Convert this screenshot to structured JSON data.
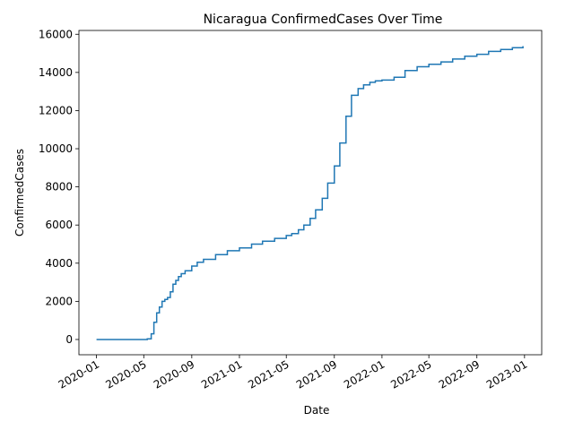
{
  "chart_data": {
    "type": "line",
    "title": "Nicaragua  ConfirmedCases Over Time",
    "xlabel": "Date",
    "ylabel": "ConfirmedCases",
    "x_ticks": [
      "2020-01",
      "2020-05",
      "2020-09",
      "2021-01",
      "2021-05",
      "2021-09",
      "2022-01",
      "2022-05",
      "2022-09",
      "2023-01"
    ],
    "y_ticks": [
      "0",
      "2000",
      "4000",
      "6000",
      "8000",
      "10000",
      "12000",
      "14000",
      "16000"
    ],
    "xlim": [
      "2019-11-17",
      "2023-02-14"
    ],
    "ylim": [
      -800,
      16200
    ],
    "grid": false,
    "line_color": "#1f77b4",
    "series": [
      {
        "x": [
          "2020-01-01",
          "2020-03-15",
          "2020-05-10",
          "2020-05-20",
          "2020-05-27",
          "2020-06-03",
          "2020-06-10",
          "2020-06-17",
          "2020-06-24",
          "2020-07-01",
          "2020-07-08",
          "2020-07-15",
          "2020-07-22",
          "2020-07-29",
          "2020-08-05",
          "2020-08-15",
          "2020-09-01",
          "2020-09-15",
          "2020-10-01",
          "2020-11-01",
          "2020-12-01",
          "2021-01-01",
          "2021-02-01",
          "2021-03-01",
          "2021-04-01",
          "2021-05-01",
          "2021-05-15",
          "2021-06-01",
          "2021-06-15",
          "2021-07-01",
          "2021-07-15",
          "2021-08-01",
          "2021-08-15",
          "2021-09-01",
          "2021-09-15",
          "2021-10-01",
          "2021-10-15",
          "2021-11-01",
          "2021-11-15",
          "2021-12-01",
          "2021-12-15",
          "2022-01-01",
          "2022-02-01",
          "2022-03-01",
          "2022-04-01",
          "2022-05-01",
          "2022-06-01",
          "2022-07-01",
          "2022-08-01",
          "2022-09-01",
          "2022-10-01",
          "2022-11-01",
          "2022-12-01",
          "2022-12-28"
        ],
        "y": [
          0,
          0,
          30,
          300,
          900,
          1400,
          1700,
          2000,
          2100,
          2200,
          2500,
          2900,
          3100,
          3300,
          3450,
          3600,
          3850,
          4050,
          4200,
          4450,
          4650,
          4800,
          5000,
          5150,
          5300,
          5450,
          5550,
          5750,
          6000,
          6350,
          6800,
          7400,
          8200,
          9100,
          10300,
          11700,
          12800,
          13150,
          13350,
          13480,
          13560,
          13600,
          13750,
          14100,
          14300,
          14430,
          14550,
          14700,
          14850,
          14950,
          15100,
          15200,
          15300,
          15380
        ]
      }
    ]
  }
}
